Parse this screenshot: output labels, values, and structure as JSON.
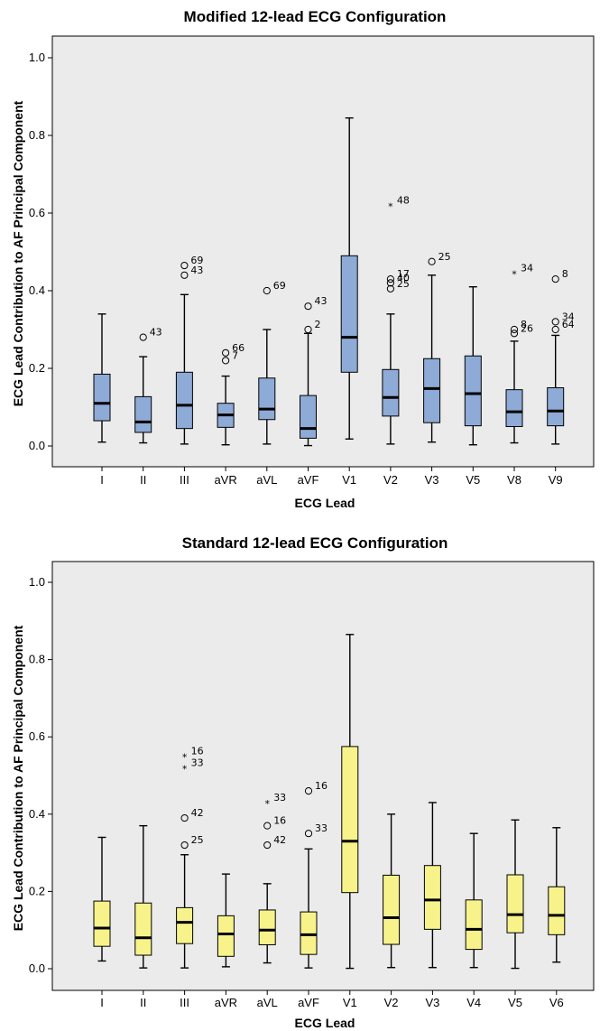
{
  "chart_data": [
    {
      "type": "box",
      "title": "Modified 12-lead ECG Configuration",
      "xlabel": "ECG Lead",
      "ylabel": "ECG Lead Contribution to AF Principal Component",
      "ylim": [
        0,
        1.0
      ],
      "yticks": [
        "0.0",
        "0.2",
        "0.4",
        "0.6",
        "0.8",
        "1.0"
      ],
      "grid": false,
      "box_color": "#8eaad6",
      "categories": [
        "I",
        "II",
        "III",
        "aVR",
        "aVL",
        "aVF",
        "V1",
        "V2",
        "V3",
        "V5",
        "V8",
        "V9"
      ],
      "boxes": [
        {
          "lead": "I",
          "whisker_low": 0.01,
          "q1": 0.065,
          "median": 0.11,
          "q3": 0.185,
          "whisker_high": 0.34
        },
        {
          "lead": "II",
          "whisker_low": 0.008,
          "q1": 0.035,
          "median": 0.062,
          "q3": 0.127,
          "whisker_high": 0.23
        },
        {
          "lead": "III",
          "whisker_low": 0.005,
          "q1": 0.045,
          "median": 0.105,
          "q3": 0.19,
          "whisker_high": 0.39
        },
        {
          "lead": "aVR",
          "whisker_low": 0.003,
          "q1": 0.048,
          "median": 0.08,
          "q3": 0.11,
          "whisker_high": 0.18
        },
        {
          "lead": "aVL",
          "whisker_low": 0.005,
          "q1": 0.068,
          "median": 0.095,
          "q3": 0.175,
          "whisker_high": 0.3
        },
        {
          "lead": "aVF",
          "whisker_low": 0.001,
          "q1": 0.02,
          "median": 0.045,
          "q3": 0.13,
          "whisker_high": 0.29
        },
        {
          "lead": "V1",
          "whisker_low": 0.018,
          "q1": 0.19,
          "median": 0.28,
          "q3": 0.49,
          "whisker_high": 0.845
        },
        {
          "lead": "V2",
          "whisker_low": 0.005,
          "q1": 0.077,
          "median": 0.125,
          "q3": 0.197,
          "whisker_high": 0.34
        },
        {
          "lead": "V3",
          "whisker_low": 0.01,
          "q1": 0.06,
          "median": 0.148,
          "q3": 0.225,
          "whisker_high": 0.44
        },
        {
          "lead": "V5",
          "whisker_low": 0.003,
          "q1": 0.052,
          "median": 0.135,
          "q3": 0.232,
          "whisker_high": 0.41
        },
        {
          "lead": "V8",
          "whisker_low": 0.008,
          "q1": 0.05,
          "median": 0.088,
          "q3": 0.145,
          "whisker_high": 0.27
        },
        {
          "lead": "V9",
          "whisker_low": 0.005,
          "q1": 0.052,
          "median": 0.09,
          "q3": 0.15,
          "whisker_high": 0.285
        }
      ],
      "outliers": [
        {
          "lead": "II",
          "y": 0.28,
          "marker": "circle",
          "label": "43"
        },
        {
          "lead": "III",
          "y": 0.465,
          "marker": "circle",
          "label": "69"
        },
        {
          "lead": "III",
          "y": 0.44,
          "marker": "circle",
          "label": "43"
        },
        {
          "lead": "aVR",
          "y": 0.24,
          "marker": "circle",
          "label": "66"
        },
        {
          "lead": "aVR",
          "y": 0.22,
          "marker": "circle",
          "label": "7"
        },
        {
          "lead": "aVL",
          "y": 0.4,
          "marker": "circle",
          "label": "69"
        },
        {
          "lead": "aVF",
          "y": 0.36,
          "marker": "circle",
          "label": "43"
        },
        {
          "lead": "aVF",
          "y": 0.3,
          "marker": "circle",
          "label": "2"
        },
        {
          "lead": "V2",
          "y": 0.62,
          "marker": "star",
          "label": "48"
        },
        {
          "lead": "V2",
          "y": 0.43,
          "marker": "circle",
          "label": "17"
        },
        {
          "lead": "V2",
          "y": 0.42,
          "marker": "circle",
          "label": "40"
        },
        {
          "lead": "V2",
          "y": 0.405,
          "marker": "circle",
          "label": "25"
        },
        {
          "lead": "V3",
          "y": 0.475,
          "marker": "circle",
          "label": "25"
        },
        {
          "lead": "V8",
          "y": 0.445,
          "marker": "star",
          "label": "34"
        },
        {
          "lead": "V8",
          "y": 0.3,
          "marker": "circle",
          "label": "8"
        },
        {
          "lead": "V8",
          "y": 0.29,
          "marker": "circle",
          "label": "26"
        },
        {
          "lead": "V9",
          "y": 0.43,
          "marker": "circle",
          "label": "8"
        },
        {
          "lead": "V9",
          "y": 0.32,
          "marker": "circle",
          "label": "34"
        },
        {
          "lead": "V9",
          "y": 0.3,
          "marker": "circle",
          "label": "64"
        }
      ]
    },
    {
      "type": "box",
      "title": "Standard 12-lead ECG Configuration",
      "xlabel": "ECG Lead",
      "ylabel": "ECG Lead Contribution to AF Principal Component",
      "ylim": [
        0,
        1.0
      ],
      "yticks": [
        "0.0",
        "0.2",
        "0.4",
        "0.6",
        "0.8",
        "1.0"
      ],
      "grid": false,
      "box_color": "#f7f38a",
      "categories": [
        "I",
        "II",
        "III",
        "aVR",
        "aVL",
        "aVF",
        "V1",
        "V2",
        "V3",
        "V4",
        "V5",
        "V6"
      ],
      "boxes": [
        {
          "lead": "I",
          "whisker_low": 0.02,
          "q1": 0.058,
          "median": 0.105,
          "q3": 0.175,
          "whisker_high": 0.34
        },
        {
          "lead": "II",
          "whisker_low": 0.002,
          "q1": 0.035,
          "median": 0.08,
          "q3": 0.17,
          "whisker_high": 0.37
        },
        {
          "lead": "III",
          "whisker_low": 0.002,
          "q1": 0.065,
          "median": 0.12,
          "q3": 0.158,
          "whisker_high": 0.295
        },
        {
          "lead": "aVR",
          "whisker_low": 0.005,
          "q1": 0.032,
          "median": 0.09,
          "q3": 0.137,
          "whisker_high": 0.245
        },
        {
          "lead": "aVL",
          "whisker_low": 0.015,
          "q1": 0.062,
          "median": 0.1,
          "q3": 0.152,
          "whisker_high": 0.22
        },
        {
          "lead": "aVF",
          "whisker_low": 0.002,
          "q1": 0.037,
          "median": 0.088,
          "q3": 0.147,
          "whisker_high": 0.31
        },
        {
          "lead": "V1",
          "whisker_low": 0.001,
          "q1": 0.197,
          "median": 0.33,
          "q3": 0.575,
          "whisker_high": 0.865
        },
        {
          "lead": "V2",
          "whisker_low": 0.003,
          "q1": 0.063,
          "median": 0.132,
          "q3": 0.242,
          "whisker_high": 0.4
        },
        {
          "lead": "V3",
          "whisker_low": 0.003,
          "q1": 0.102,
          "median": 0.178,
          "q3": 0.267,
          "whisker_high": 0.43
        },
        {
          "lead": "V4",
          "whisker_low": 0.003,
          "q1": 0.05,
          "median": 0.102,
          "q3": 0.178,
          "whisker_high": 0.35
        },
        {
          "lead": "V5",
          "whisker_low": 0.001,
          "q1": 0.093,
          "median": 0.14,
          "q3": 0.243,
          "whisker_high": 0.385
        },
        {
          "lead": "V6",
          "whisker_low": 0.017,
          "q1": 0.088,
          "median": 0.138,
          "q3": 0.212,
          "whisker_high": 0.365
        }
      ],
      "outliers": [
        {
          "lead": "III",
          "y": 0.55,
          "marker": "star",
          "label": "16"
        },
        {
          "lead": "III",
          "y": 0.52,
          "marker": "star",
          "label": "33"
        },
        {
          "lead": "III",
          "y": 0.39,
          "marker": "circle",
          "label": "42"
        },
        {
          "lead": "III",
          "y": 0.32,
          "marker": "circle",
          "label": "25"
        },
        {
          "lead": "aVL",
          "y": 0.43,
          "marker": "star",
          "label": "33"
        },
        {
          "lead": "aVL",
          "y": 0.37,
          "marker": "circle",
          "label": "16"
        },
        {
          "lead": "aVL",
          "y": 0.32,
          "marker": "circle",
          "label": "42"
        },
        {
          "lead": "aVF",
          "y": 0.46,
          "marker": "circle",
          "label": "16"
        },
        {
          "lead": "aVF",
          "y": 0.35,
          "marker": "circle",
          "label": "33"
        }
      ]
    }
  ]
}
